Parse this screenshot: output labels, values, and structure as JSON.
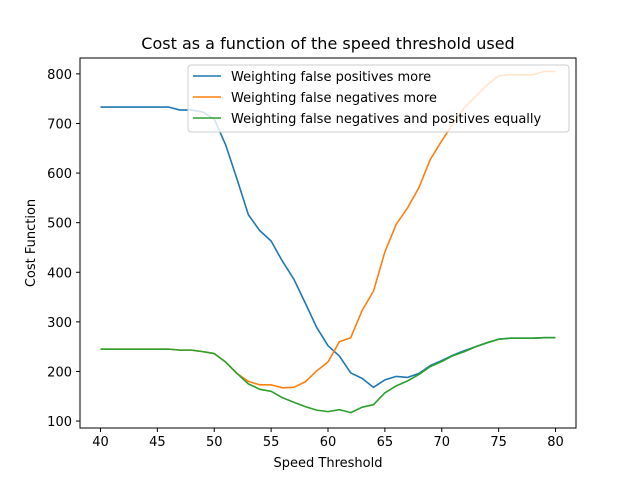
{
  "chart_data": {
    "type": "line",
    "title": "Cost as a function of the speed threshold used",
    "xlabel": "Speed Threshold",
    "ylabel": "Cost Function",
    "xlim": [
      38.2,
      81.8
    ],
    "ylim": [
      86,
      832
    ],
    "x_ticks": [
      40,
      45,
      50,
      55,
      60,
      65,
      70,
      75,
      80
    ],
    "y_ticks": [
      100,
      200,
      300,
      400,
      500,
      600,
      700,
      800
    ],
    "grid": false,
    "legend_position": "top-right",
    "x": [
      40,
      41,
      42,
      43,
      44,
      45,
      46,
      47,
      48,
      49,
      50,
      51,
      52,
      53,
      54,
      55,
      56,
      57,
      58,
      59,
      60,
      61,
      62,
      63,
      64,
      65,
      66,
      67,
      68,
      69,
      70,
      71,
      72,
      73,
      74,
      75,
      76,
      77,
      78,
      79,
      80
    ],
    "series": [
      {
        "name": "Weighting false positives more",
        "color": "#1f77b4",
        "values": [
          733,
          733,
          733,
          733,
          733,
          733,
          733,
          727,
          727,
          723,
          709,
          657,
          588,
          516,
          484,
          463,
          422,
          386,
          338,
          289,
          252,
          231,
          197,
          186,
          168,
          183,
          190,
          188,
          196,
          212,
          222,
          233,
          242,
          250,
          258,
          265,
          267,
          267,
          267,
          268,
          268
        ]
      },
      {
        "name": "Weighting false negatives more",
        "color": "#ff7f0e",
        "values": [
          245,
          245,
          245,
          245,
          245,
          245,
          245,
          243,
          243,
          240,
          236,
          219,
          196,
          180,
          173,
          173,
          167,
          168,
          179,
          201,
          219,
          260,
          268,
          323,
          362,
          441,
          497,
          530,
          571,
          628,
          665,
          700,
          732,
          755,
          778,
          796,
          798,
          798,
          798,
          805,
          805
        ]
      },
      {
        "name": "Weighting false negatives and positives equally",
        "color": "#2ca02c",
        "values": [
          245,
          245,
          245,
          245,
          245,
          245,
          245,
          243,
          243,
          240,
          236,
          219,
          196,
          175,
          164,
          160,
          147,
          138,
          129,
          122,
          119,
          123,
          117,
          128,
          133,
          157,
          171,
          181,
          194,
          210,
          220,
          232,
          240,
          250,
          258,
          265,
          267,
          267,
          267,
          268,
          268
        ]
      }
    ]
  }
}
